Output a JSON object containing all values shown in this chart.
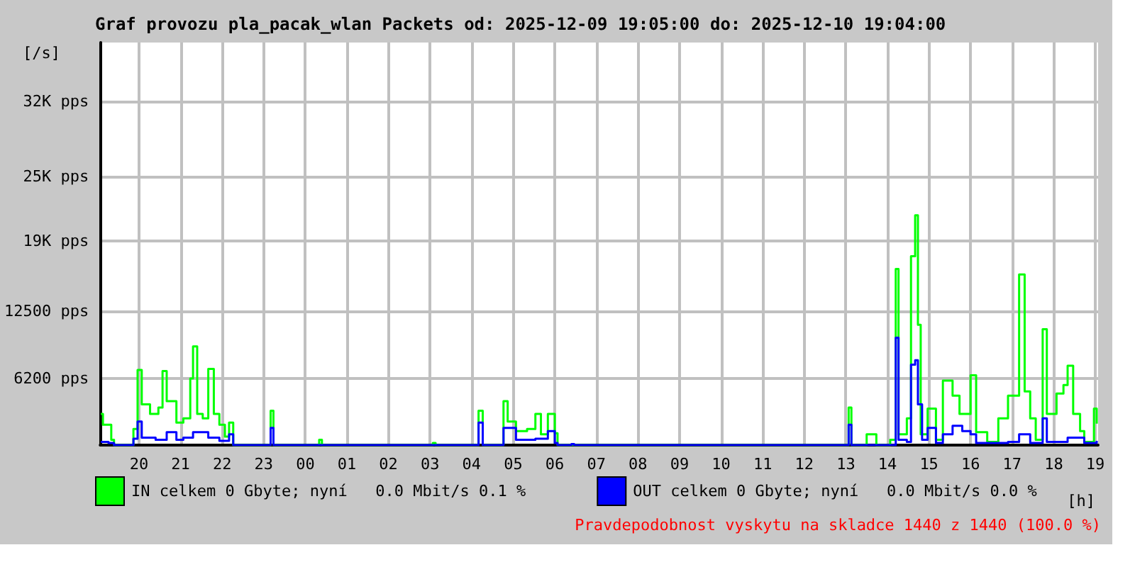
{
  "chart_data": {
    "type": "step",
    "title": "Graf provozu pla_pacak_wlan Packets od: 2025-12-09 19:05:00 do: 2025-12-10 19:04:00",
    "ylabel": "[/s]",
    "xlabel": "[h]",
    "xlim": [
      "2025-12-09T19:04",
      "2025-12-10T19:04"
    ],
    "xticks": [
      {
        "value": "2025-12-09T20:00",
        "label": "20"
      },
      {
        "value": "2025-12-09T21:00",
        "label": "21"
      },
      {
        "value": "2025-12-09T22:00",
        "label": "22"
      },
      {
        "value": "2025-12-09T23:00",
        "label": "23"
      },
      {
        "value": "2025-12-10T00:00",
        "label": "00"
      },
      {
        "value": "2025-12-10T01:00",
        "label": "01"
      },
      {
        "value": "2025-12-10T02:00",
        "label": "02"
      },
      {
        "value": "2025-12-10T03:00",
        "label": "03"
      },
      {
        "value": "2025-12-10T04:00",
        "label": "04"
      },
      {
        "value": "2025-12-10T05:00",
        "label": "05"
      },
      {
        "value": "2025-12-10T06:00",
        "label": "06"
      },
      {
        "value": "2025-12-10T07:00",
        "label": "07"
      },
      {
        "value": "2025-12-10T08:00",
        "label": "08"
      },
      {
        "value": "2025-12-10T09:00",
        "label": "09"
      },
      {
        "value": "2025-12-10T10:00",
        "label": "10"
      },
      {
        "value": "2025-12-10T11:00",
        "label": "11"
      },
      {
        "value": "2025-12-10T12:00",
        "label": "12"
      },
      {
        "value": "2025-12-10T13:00",
        "label": "13"
      },
      {
        "value": "2025-12-10T14:00",
        "label": "14"
      },
      {
        "value": "2025-12-10T15:00",
        "label": "15"
      },
      {
        "value": "2025-12-10T16:00",
        "label": "16"
      },
      {
        "value": "2025-12-10T17:00",
        "label": "17"
      },
      {
        "value": "2025-12-10T18:00",
        "label": "18"
      },
      {
        "value": "2025-12-10T19:00",
        "label": "19"
      }
    ],
    "ylim": [
      0,
      37500
    ],
    "yticks": [
      {
        "value": 6200,
        "label": "6200 pps"
      },
      {
        "value": 12500,
        "label": "12500 pps"
      },
      {
        "value": 19000,
        "label": "19K pps"
      },
      {
        "value": 25000,
        "label": "25K pps"
      },
      {
        "value": 32000,
        "label": "32K pps"
      }
    ],
    "grid": true,
    "legend": "bottom left",
    "annotations": [
      "Pravdepodobnost vyskytu na skladce 1440 z 1440 (100.0 %)"
    ],
    "series": [
      {
        "name": "IN celkem 0 Gbyte; nyní   0.0 Mbit/s 0.1 %",
        "color": "#00ff00",
        "x": [
          "2025-12-09T19:05",
          "2025-12-09T19:08",
          "2025-12-09T19:16",
          "2025-12-09T19:20",
          "2025-12-09T19:24",
          "2025-12-09T19:44",
          "2025-12-09T19:52",
          "2025-12-09T19:58",
          "2025-12-09T20:04",
          "2025-12-09T20:16",
          "2025-12-09T20:28",
          "2025-12-09T20:34",
          "2025-12-09T20:40",
          "2025-12-09T20:54",
          "2025-12-09T21:04",
          "2025-12-09T21:14",
          "2025-12-09T21:18",
          "2025-12-09T21:24",
          "2025-12-09T21:32",
          "2025-12-09T21:40",
          "2025-12-09T21:48",
          "2025-12-09T21:56",
          "2025-12-09T22:04",
          "2025-12-09T22:10",
          "2025-12-09T22:16",
          "2025-12-09T23:04",
          "2025-12-09T23:10",
          "2025-12-09T23:14",
          "2025-12-10T00:16",
          "2025-12-10T00:20",
          "2025-12-10T00:24",
          "2025-12-10T03:00",
          "2025-12-10T03:04",
          "2025-12-10T03:08",
          "2025-12-10T04:04",
          "2025-12-10T04:10",
          "2025-12-10T04:16",
          "2025-12-10T04:40",
          "2025-12-10T04:46",
          "2025-12-10T04:52",
          "2025-12-10T05:04",
          "2025-12-10T05:20",
          "2025-12-10T05:32",
          "2025-12-10T05:40",
          "2025-12-10T05:50",
          "2025-12-10T06:00",
          "2025-12-10T06:04",
          "2025-12-10T12:58",
          "2025-12-10T13:04",
          "2025-12-10T13:08",
          "2025-12-10T13:24",
          "2025-12-10T13:30",
          "2025-12-10T13:44",
          "2025-12-10T14:04",
          "2025-12-10T14:12",
          "2025-12-10T14:16",
          "2025-12-10T14:28",
          "2025-12-10T14:34",
          "2025-12-10T14:40",
          "2025-12-10T14:44",
          "2025-12-10T14:48",
          "2025-12-10T14:58",
          "2025-12-10T15:10",
          "2025-12-10T15:20",
          "2025-12-10T15:34",
          "2025-12-10T15:44",
          "2025-12-10T16:00",
          "2025-12-10T16:08",
          "2025-12-10T16:24",
          "2025-12-10T16:40",
          "2025-12-10T16:54",
          "2025-12-10T17:10",
          "2025-12-10T17:18",
          "2025-12-10T17:26",
          "2025-12-10T17:34",
          "2025-12-10T17:44",
          "2025-12-10T17:50",
          "2025-12-10T18:04",
          "2025-12-10T18:14",
          "2025-12-10T18:20",
          "2025-12-10T18:28",
          "2025-12-10T18:38",
          "2025-12-10T18:44",
          "2025-12-10T18:58",
          "2025-12-10T19:02"
        ],
        "values": [
          2900,
          1900,
          1900,
          500,
          0,
          0,
          1500,
          7000,
          3800,
          2900,
          3500,
          6900,
          4100,
          2100,
          2500,
          6200,
          9200,
          2900,
          2500,
          7100,
          2900,
          1900,
          800,
          2100,
          0,
          0,
          3200,
          0,
          0,
          500,
          0,
          0,
          200,
          0,
          0,
          3200,
          0,
          0,
          4100,
          2200,
          1300,
          1500,
          2900,
          1000,
          2900,
          1100,
          0,
          0,
          3500,
          0,
          0,
          1000,
          0,
          500,
          16400,
          1000,
          2500,
          17600,
          21400,
          11200,
          1000,
          3400,
          500,
          6000,
          4600,
          2900,
          6500,
          1200,
          300,
          2500,
          4600,
          15900,
          5000,
          2500,
          500,
          10800,
          2900,
          4800,
          5600,
          7400,
          2900,
          1300,
          300,
          3400,
          2000
        ]
      },
      {
        "name": "OUT celkem 0 Gbyte; nyní   0.0 Mbit/s 0.0 %",
        "color": "#0000ff",
        "x": [
          "2025-12-09T19:05",
          "2025-12-09T19:16",
          "2025-12-09T19:24",
          "2025-12-09T19:44",
          "2025-12-09T19:52",
          "2025-12-09T19:58",
          "2025-12-09T20:04",
          "2025-12-09T20:24",
          "2025-12-09T20:40",
          "2025-12-09T20:54",
          "2025-12-09T21:04",
          "2025-12-09T21:18",
          "2025-12-09T21:40",
          "2025-12-09T21:56",
          "2025-12-09T22:10",
          "2025-12-09T22:16",
          "2025-12-09T23:04",
          "2025-12-09T23:10",
          "2025-12-09T23:14",
          "2025-12-10T04:04",
          "2025-12-10T04:10",
          "2025-12-10T04:16",
          "2025-12-10T04:40",
          "2025-12-10T04:46",
          "2025-12-10T05:04",
          "2025-12-10T05:32",
          "2025-12-10T05:50",
          "2025-12-10T06:00",
          "2025-12-10T06:04",
          "2025-12-10T06:24",
          "2025-12-10T06:28",
          "2025-12-10T12:58",
          "2025-12-10T13:04",
          "2025-12-10T13:08",
          "2025-12-10T14:04",
          "2025-12-10T14:12",
          "2025-12-10T14:16",
          "2025-12-10T14:28",
          "2025-12-10T14:34",
          "2025-12-10T14:40",
          "2025-12-10T14:44",
          "2025-12-10T14:50",
          "2025-12-10T14:58",
          "2025-12-10T15:10",
          "2025-12-10T15:20",
          "2025-12-10T15:34",
          "2025-12-10T15:48",
          "2025-12-10T16:00",
          "2025-12-10T16:08",
          "2025-12-10T16:54",
          "2025-12-10T17:10",
          "2025-12-10T17:26",
          "2025-12-10T17:44",
          "2025-12-10T17:50",
          "2025-12-10T18:20",
          "2025-12-10T18:44",
          "2025-12-10T19:02"
        ],
        "values": [
          300,
          200,
          0,
          0,
          600,
          2200,
          700,
          500,
          1200,
          500,
          700,
          1200,
          700,
          400,
          1000,
          0,
          0,
          1600,
          0,
          0,
          2100,
          0,
          0,
          1600,
          500,
          600,
          1300,
          200,
          0,
          100,
          0,
          0,
          1900,
          0,
          0,
          10000,
          500,
          300,
          7500,
          7900,
          3800,
          500,
          1600,
          200,
          1000,
          1800,
          1300,
          1000,
          200,
          300,
          1000,
          200,
          2500,
          300,
          700,
          200,
          400
        ]
      }
    ]
  }
}
